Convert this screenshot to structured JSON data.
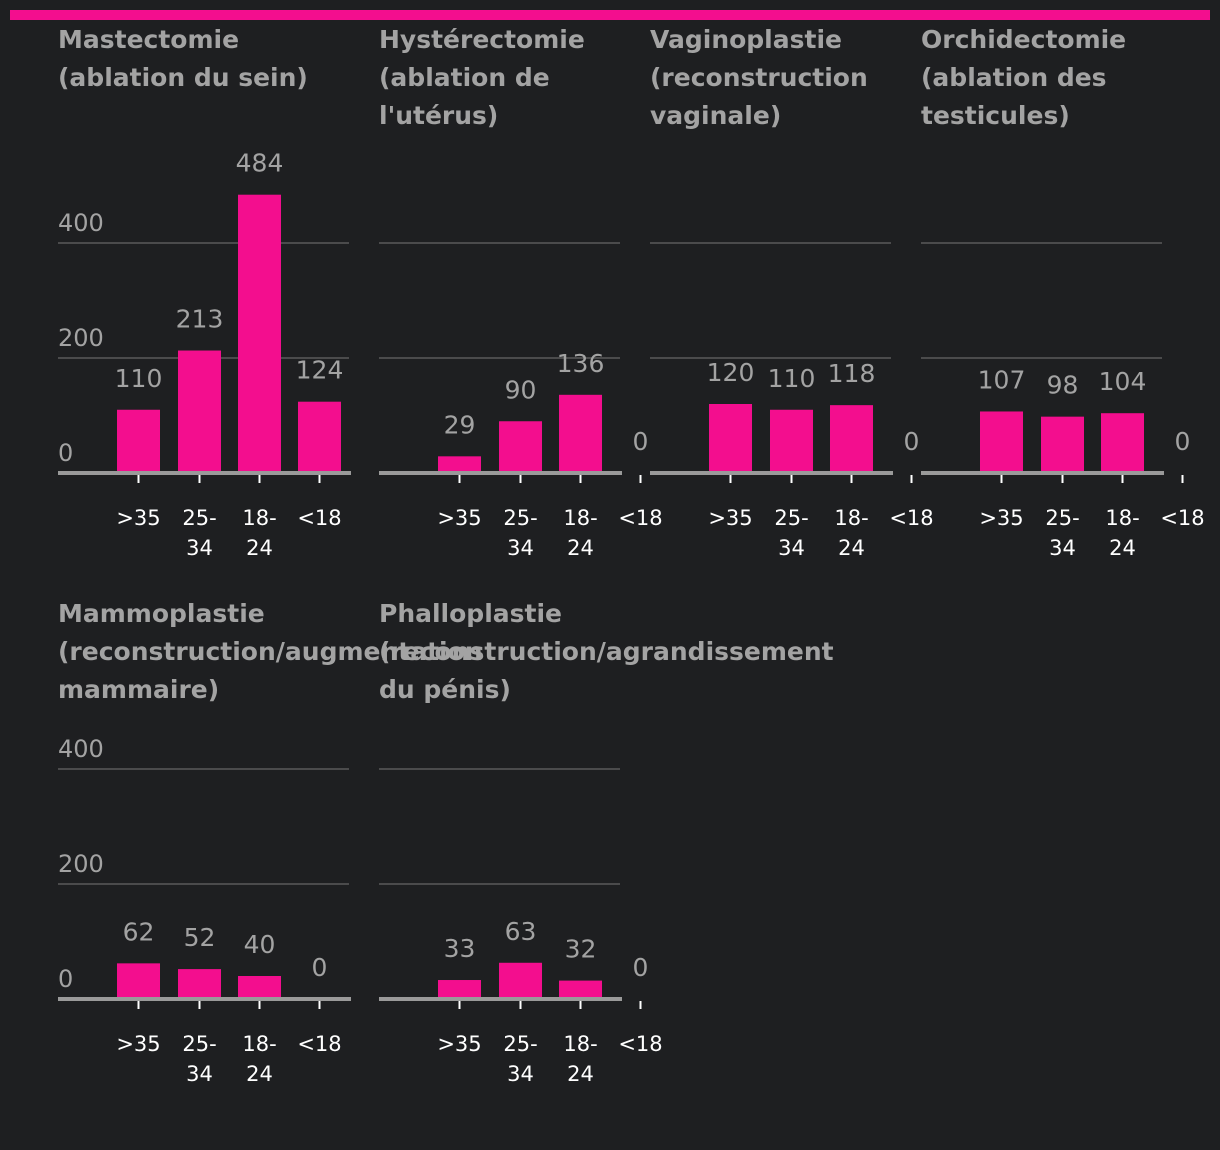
{
  "accent_color": "#f30e8e",
  "chart_data": {
    "type": "bar",
    "ylim": [
      0,
      500
    ],
    "yticks": [
      0,
      200,
      400
    ],
    "categories": [
      ">35",
      "25-34",
      "18-24",
      "<18"
    ],
    "panels": [
      {
        "title": [
          "Mastectomie",
          "(ablation du sein)"
        ],
        "values": [
          110,
          213,
          484,
          124
        ]
      },
      {
        "title": [
          "Hystérectomie",
          "(ablation de",
          "l'utérus)"
        ],
        "values": [
          29,
          90,
          136,
          0
        ]
      },
      {
        "title": [
          "Vaginoplastie",
          "(reconstruction",
          "vaginale)"
        ],
        "values": [
          120,
          110,
          118,
          0
        ]
      },
      {
        "title": [
          "Orchidectomie",
          "(ablation des",
          "testicules)"
        ],
        "values": [
          107,
          98,
          104,
          0
        ]
      },
      {
        "title": [
          "Mammoplastie",
          "(reconstruction/augmentation",
          "mammaire)"
        ],
        "values": [
          62,
          52,
          40,
          0
        ]
      },
      {
        "title": [
          "Phalloplastie",
          "(reconstruction/agrandissement",
          "du pénis)"
        ],
        "values": [
          33,
          63,
          32,
          0
        ]
      }
    ]
  }
}
